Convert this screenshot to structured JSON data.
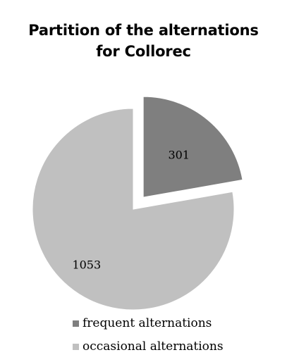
{
  "chart_data": {
    "type": "pie",
    "title": "Partition of the alternations for Collorec",
    "title_lines": [
      "Partition of the alternations",
      "for Collorec"
    ],
    "categories": [
      "frequent alternations",
      "occasional alternations"
    ],
    "values": [
      301,
      1053
    ],
    "data_labels": [
      "301",
      "1053"
    ],
    "colors": [
      "#7f7f7f",
      "#c0c0c0"
    ],
    "exploded": [
      "frequent alternations"
    ],
    "legend_position": "bottom"
  }
}
